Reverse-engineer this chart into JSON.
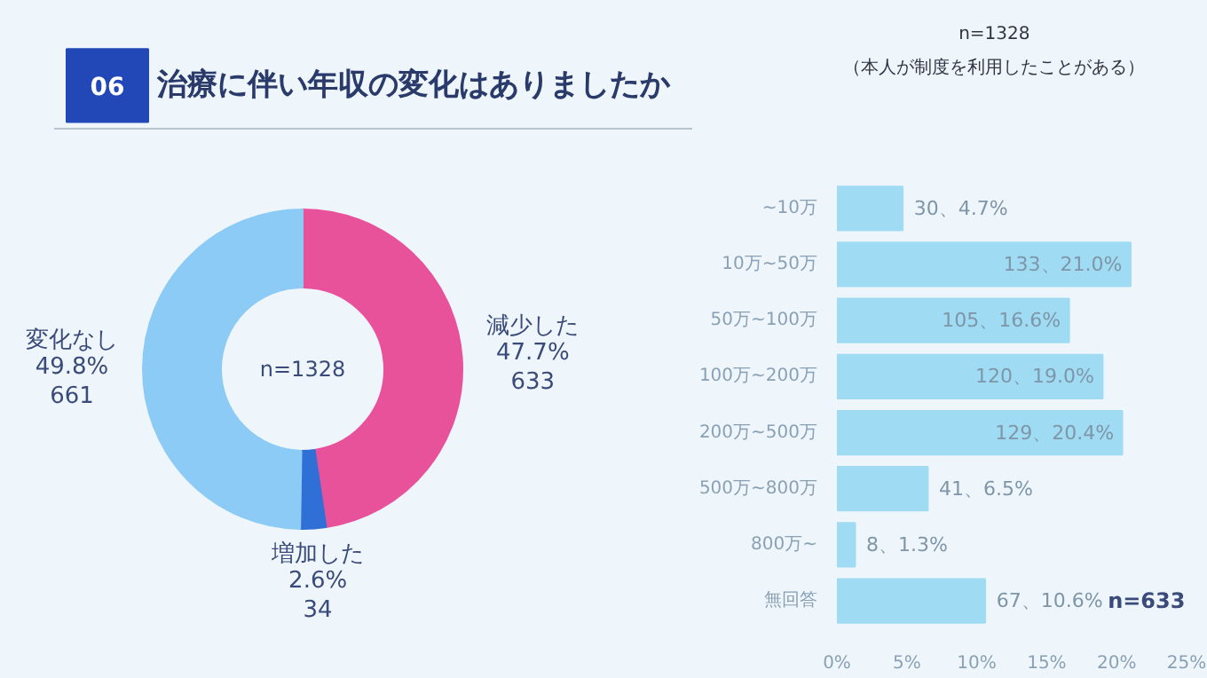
{
  "chart_data": [
    {
      "type": "donut",
      "title": "治療に伴い年収の変化はありましたか",
      "annotations": [
        "06",
        "n=1328"
      ],
      "categories": [
        "減少した",
        "増加した",
        "変化なし"
      ],
      "values": [
        47.7,
        2.6,
        49.8
      ],
      "value_labels": [
        "47.7%\n633",
        "2.6%\n34",
        "49.8%\n661"
      ],
      "colors": [
        "#e8529b",
        "#2f6fd6",
        "#8ccbf5"
      ]
    },
    {
      "type": "bar",
      "orientation": "horizontal",
      "subtitle": "n=1328\n（本人が制度を利用したことがある）",
      "categories": [
        "~10万",
        "10万~50万",
        "50万~100万",
        "100万~200万",
        "200万~500万",
        "500万~800万",
        "800万~",
        "無回答"
      ],
      "values": [
        4.7,
        21.0,
        16.6,
        19.0,
        20.4,
        6.5,
        1.3,
        10.6
      ],
      "value_labels": [
        "30、4.7%",
        "133、21.0%",
        "105、16.6%",
        "120、19.0%",
        "129、20.4%",
        "41、6.5%",
        "8、1.3%",
        "67、10.6%"
      ],
      "color": "#9fdcf3",
      "xlim": [
        0,
        25
      ],
      "xticks": [
        {
          "value": 0,
          "label": "0%"
        },
        {
          "value": 5,
          "label": "5%"
        },
        {
          "value": 10,
          "label": "10%"
        },
        {
          "value": 15,
          "label": "15%"
        },
        {
          "value": 20,
          "label": "20%"
        },
        {
          "value": 25,
          "label": "25%"
        }
      ],
      "annotations": [
        "n=633"
      ]
    }
  ]
}
